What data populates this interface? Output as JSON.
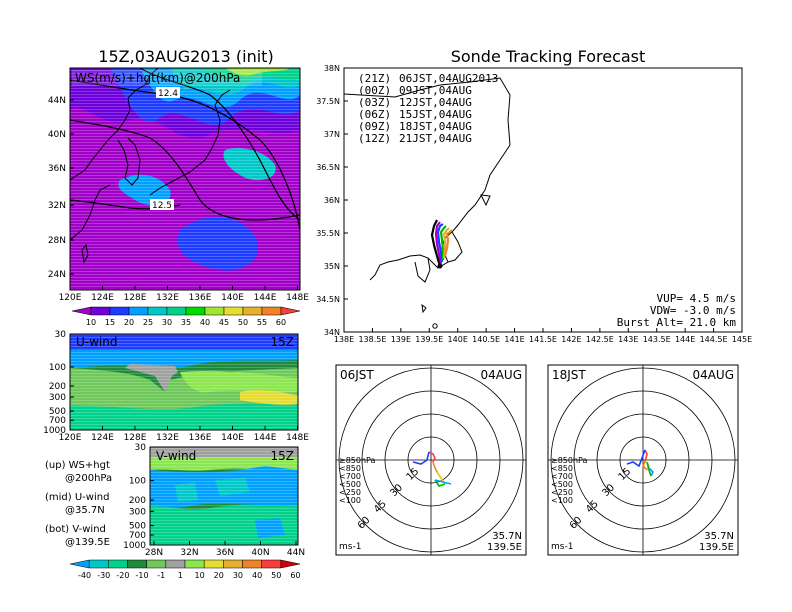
{
  "titles": {
    "left": "15Z,03AUG2013 (init)",
    "right": "Sonde Tracking Forecast"
  },
  "map_panel": {
    "label": "WS(m/s)+hgt(km)@200hPa",
    "lat_ticks": [
      "44N",
      "40N",
      "36N",
      "32N",
      "28N",
      "24N"
    ],
    "lon_ticks": [
      "120E",
      "124E",
      "128E",
      "132E",
      "136E",
      "140E",
      "144E",
      "148E"
    ],
    "contour_labels": [
      "12.4",
      "12.5"
    ]
  },
  "ws_colorbar": {
    "labels": [
      "10",
      "15",
      "20",
      "25",
      "30",
      "35",
      "40",
      "45",
      "50",
      "55",
      "60"
    ],
    "colors": [
      "#a000c8",
      "#6e00dc",
      "#1e3cff",
      "#00a0ff",
      "#00c8c8",
      "#00d28c",
      "#00dc00",
      "#a0e632",
      "#e6dc32",
      "#e6af2d",
      "#f08228",
      "#fa3c3c"
    ]
  },
  "uwind_panel": {
    "label": "U-wind",
    "time": "15Z",
    "p_ticks": [
      "30",
      "100",
      "200",
      "300",
      "500",
      "700",
      "1000"
    ],
    "lon_ticks": [
      "120E",
      "124E",
      "128E",
      "132E",
      "136E",
      "140E",
      "144E",
      "148E"
    ]
  },
  "vwind_panel": {
    "label": "V-wind",
    "time": "15Z",
    "p_ticks": [
      "30",
      "100",
      "200",
      "300",
      "500",
      "700",
      "1000"
    ],
    "lat_ticks": [
      "28N",
      "32N",
      "36N",
      "40N",
      "44N"
    ]
  },
  "diverging_colorbar": {
    "labels": [
      "-40",
      "-30",
      "-20",
      "-10",
      "-1",
      "1",
      "10",
      "20",
      "30",
      "40",
      "50",
      "60"
    ],
    "colors": [
      "#00a0ff",
      "#00c8c8",
      "#00d28c",
      "#1e8a3c",
      "#6ec85a",
      "#a0a0a0",
      "#8ce650",
      "#e6dc32",
      "#e6af2d",
      "#f08228",
      "#fa3c3c",
      "#d20000"
    ]
  },
  "legend_text": {
    "up": [
      "(up) WS+hgt",
      "@200hPa"
    ],
    "mid": [
      "(mid) U-wind",
      "@35.7N"
    ],
    "bot": [
      "(bot) V-wind",
      "@139.5E"
    ]
  },
  "track_map": {
    "lat_ticks": [
      "38N",
      "37.5N",
      "37N",
      "36.5N",
      "36N",
      "35.5N",
      "35N",
      "34.5N",
      "34N"
    ],
    "lon_ticks": [
      "138E",
      "138.5E",
      "139E",
      "139.5E",
      "140E",
      "140.5E",
      "141E",
      "141.5E",
      "142E",
      "142.5E",
      "143E",
      "143.5E",
      "144E",
      "144.5E",
      "145E"
    ],
    "legend": [
      {
        "utc": "(21Z)",
        "jst": "06JST,04AUG2013",
        "color": "#000000"
      },
      {
        "utc": "(00Z)",
        "jst": "09JST,04AUG",
        "color": "#a000c8"
      },
      {
        "utc": "(03Z)",
        "jst": "12JST,04AUG",
        "color": "#1e3cff"
      },
      {
        "utc": "(06Z)",
        "jst": "15JST,04AUG",
        "color": "#00b400"
      },
      {
        "utc": "(09Z)",
        "jst": "18JST,04AUG",
        "color": "#e6af2d"
      },
      {
        "utc": "(12Z)",
        "jst": "21JST,04AUG",
        "color": "#f08228"
      }
    ],
    "params": [
      "VUP= 4.5 m/s",
      "VDW= -3.0 m/s",
      "Burst Alt= 21.0 km"
    ]
  },
  "hodo_left": {
    "time": "06JST",
    "date": "04AUG",
    "ring_labels": [
      "15",
      "30",
      "45",
      "60"
    ],
    "levels": [
      "≥850hPa",
      "<850",
      "<700",
      "<500",
      "<250",
      "<100"
    ],
    "unit": "ms-1",
    "loc": [
      "35.7N",
      "139.5E"
    ]
  },
  "hodo_right": {
    "time": "18JST",
    "date": "04AUG",
    "ring_labels": [
      "15",
      "30",
      "45",
      "60"
    ],
    "levels": [
      "≥850hPa",
      "<850",
      "<700",
      "<500",
      "<250",
      "<100"
    ],
    "unit": "ms-1",
    "loc": [
      "35.7N",
      "139.5E"
    ]
  },
  "level_colors": [
    "#fa3c3c",
    "#f08228",
    "#e6c800",
    "#00b400",
    "#00a0ff",
    "#1e3cff"
  ]
}
